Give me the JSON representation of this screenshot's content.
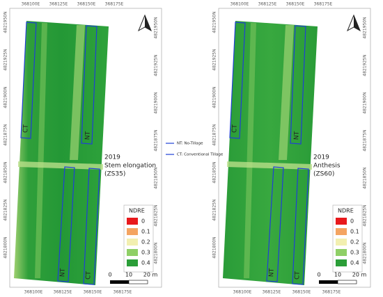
{
  "panels": [
    {
      "x_labels_top": [
        "368100E",
        "368125E",
        "368150E",
        "368175E"
      ],
      "x_labels_bottom": [
        "368100E",
        "368125E",
        "368150E",
        "368175E"
      ],
      "y_labels": [
        "4821950N",
        "4821925N",
        "4821900N",
        "4821875N",
        "4821850N",
        "4821825N",
        "4821800N"
      ],
      "plots": [
        "CT",
        "NT",
        "NT",
        "CT"
      ],
      "year": "2019",
      "stage": "Stem elongation",
      "code": "(ZS35)"
    },
    {
      "x_labels_top": [
        "368100E",
        "368125E",
        "368150E",
        "368175E"
      ],
      "x_labels_bottom": [
        "368100E",
        "368125E",
        "368150E",
        "368175E"
      ],
      "y_labels": [
        "4821950N",
        "4821925N",
        "4821900N",
        "4821875N",
        "4821850N",
        "4821825N",
        "4821800N"
      ],
      "plots": [
        "CT",
        "NT",
        "NT",
        "CT"
      ],
      "year": "2019",
      "stage": "Anthesis",
      "code": "(ZS60)"
    }
  ],
  "tillage_legend": [
    "NT: No-Tillage",
    "CT: Conventional Tillage"
  ],
  "ndre_legend": {
    "title": "NDRE",
    "items": [
      {
        "label": "0",
        "color": "#e8191c"
      },
      {
        "label": "0.1",
        "color": "#f4a461"
      },
      {
        "label": "0.2",
        "color": "#f2efb0"
      },
      {
        "label": "0.3",
        "color": "#8fcf66"
      },
      {
        "label": "0.4",
        "color": "#2b9e38"
      }
    ]
  },
  "scale_bar": [
    "0",
    "10",
    "20 m"
  ]
}
